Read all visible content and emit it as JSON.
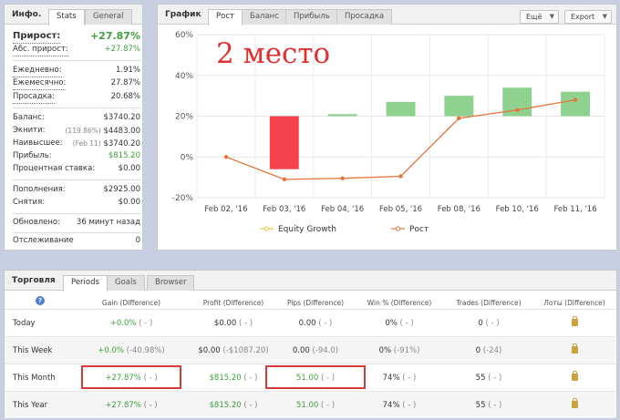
{
  "info_panel": {
    "title": "Инфо.",
    "tabs": [
      "Stats",
      "General"
    ],
    "gain_label": "Прирост:",
    "gain_value": "+27.87%",
    "abs_gain_label": "Абс. прирост:",
    "abs_gain_value": "+27.87%",
    "daily_label": "Ежедневно:",
    "daily_value": "1.91%",
    "monthly_label": "Ежемесячно:",
    "monthly_value": "27.87%",
    "drawdown_label": "Просадка:",
    "drawdown_value": "20.68%",
    "balance_label": "Баланс:",
    "balance_value": "$3740.20",
    "equity_label": "Экнити:",
    "equity_pct": "(119.86%)",
    "equity_value": "$4483.00",
    "highest_label": "Наивысшее:",
    "highest_date": "(Feb 11)",
    "highest_value": "$3740.20",
    "profit_label": "Прибыль:",
    "profit_value": "$815.20",
    "interest_label": "Процентная ставка:",
    "interest_value": "$0.00",
    "deposits_label": "Пополнения:",
    "deposits_value": "$2925.00",
    "withdrawals_label": "Снятия:",
    "withdrawals_value": "$0.00",
    "updated_label": "Обновлено:",
    "updated_value": "36 минут назад",
    "tracking_label": "Отслеживание",
    "tracking_value": "0"
  },
  "chart_panel": {
    "title": "График",
    "tabs": [
      "Рост",
      "Баланс",
      "Прибыль",
      "Просадка"
    ],
    "more_button": "Ещё",
    "export_button": "Export",
    "overlay_text": "2 место",
    "legend": [
      "Equity Growth",
      "Рост"
    ]
  },
  "chart_data": {
    "type": "bar",
    "categories": [
      "Feb 02, '16",
      "Feb 03, '16",
      "Feb 04, '16",
      "Feb 05, '16",
      "Feb 08, '16",
      "Feb 10, '16",
      "Feb 11, '16"
    ],
    "y_ticks": [
      "60%",
      "40%",
      "20%",
      "0%",
      "-20%"
    ],
    "ylim": [
      -20,
      60
    ],
    "bars": [
      {
        "open": 0,
        "close": 0
      },
      {
        "open": 20,
        "close": -6,
        "color": "#f5424d"
      },
      {
        "open": 20,
        "close": 21,
        "color": "#8fd18f"
      },
      {
        "open": 20,
        "close": 27,
        "color": "#8fd18f"
      },
      {
        "open": 20,
        "close": 30,
        "color": "#8fd18f"
      },
      {
        "open": 20,
        "close": 34,
        "color": "#8fd18f"
      },
      {
        "open": 20,
        "close": 32,
        "color": "#8fd18f"
      }
    ],
    "series": [
      {
        "name": "Рост",
        "values": [
          0,
          -11,
          -10.5,
          -9.5,
          19,
          23,
          28
        ]
      }
    ],
    "grid": true,
    "legend_position": "bottom"
  },
  "trading_panel": {
    "title": "Торговля",
    "tabs": [
      "Periods",
      "Goals",
      "Browser"
    ],
    "help_icon": "?",
    "columns": [
      "Gain (Difference)",
      "Profit (Difference)",
      "Pips (Difference)",
      "Win % (Difference)",
      "Trades (Difference)",
      "Лоты (Difference)"
    ],
    "rows": [
      {
        "label": "Today",
        "gain": "+0.0%",
        "gain_diff": "( - )",
        "profit": "$0.00",
        "profit_diff": "( - )",
        "pips": "0.00",
        "pips_diff": "( - )",
        "win": "0%",
        "win_diff": "( - )",
        "trades": "0",
        "trades_diff": "( - )"
      },
      {
        "label": "This Week",
        "gain": "+0.0%",
        "gain_diff": "(-40.98%)",
        "profit": "$0.00",
        "profit_diff": "(-$1087.20)",
        "pips": "0.00",
        "pips_diff": "(-94.0)",
        "win": "0%",
        "win_diff": "(-91%)",
        "trades": "0",
        "trades_diff": "(-24)"
      },
      {
        "label": "This Month",
        "gain": "+27.87%",
        "gain_diff": "( - )",
        "profit": "$815.20",
        "profit_diff": "( - )",
        "pips": "51.00",
        "pips_diff": "( - )",
        "win": "74%",
        "win_diff": "( - )",
        "trades": "55",
        "trades_diff": "( - )"
      },
      {
        "label": "This Year",
        "gain": "+27.87%",
        "gain_diff": "( - )",
        "profit": "$815.20",
        "profit_diff": "( - )",
        "pips": "51.00",
        "pips_diff": "( - )",
        "win": "74%",
        "win_diff": "( - )",
        "trades": "55",
        "trades_diff": "( - )"
      }
    ]
  },
  "colors": {
    "positive": "#3d9f3d",
    "loss_bar": "#f5424d",
    "gain_bar": "#8fd18f",
    "line": "#e8743b",
    "highlight_box": "#d43b3b"
  }
}
